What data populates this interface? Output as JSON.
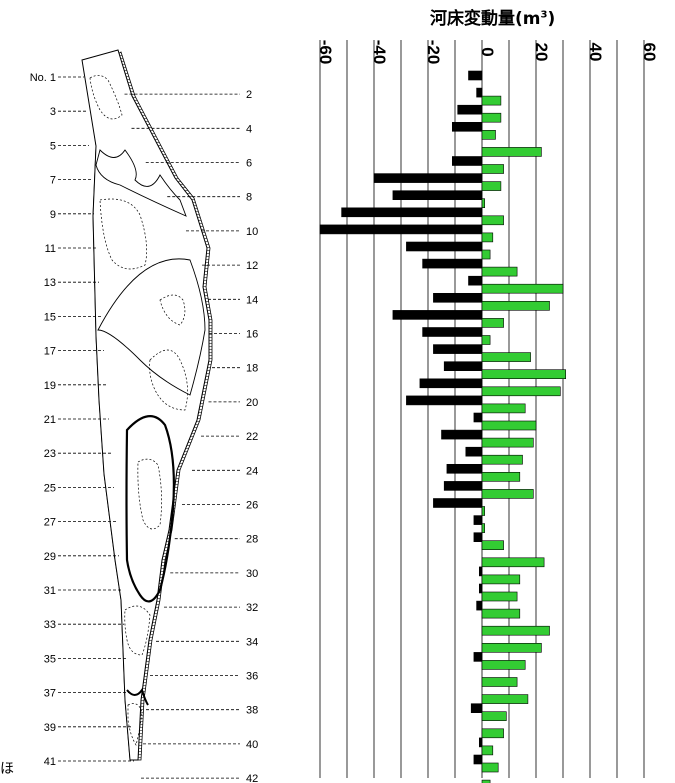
{
  "page": {
    "edge_char": "ほ"
  },
  "chart_data": {
    "type": "bar",
    "title": "河床変動量(m",
    "title_unit_superscript": "3",
    "title_close": ")",
    "x_axis": {
      "ticks": [
        -60,
        -40,
        -20,
        0,
        20,
        40,
        60
      ],
      "tick_labels": [
        "-60",
        "-40",
        "-20",
        "0",
        "20",
        "40",
        "60"
      ],
      "range": [
        -60,
        70
      ],
      "orientation": "vertical-rotated-labels",
      "grid": true
    },
    "sections": [
      "No. 1",
      "2",
      "3",
      "4",
      "5",
      "6",
      "7",
      "8",
      "9",
      "10",
      "11",
      "12",
      "13",
      "14",
      "15",
      "16",
      "17",
      "18",
      "19",
      "20",
      "21",
      "22",
      "23",
      "24",
      "25",
      "26",
      "27",
      "28",
      "29",
      "30",
      "31",
      "32",
      "33",
      "34",
      "35",
      "36",
      "37",
      "38",
      "39",
      "40",
      "41",
      "42"
    ],
    "series": [
      {
        "color": "#000000",
        "values": [
          -5,
          -2,
          -9,
          -11,
          0,
          -11,
          -40,
          -33,
          -52,
          -60,
          -28,
          -22,
          -5,
          -18,
          -33,
          -22,
          -18,
          -14,
          -23,
          -28,
          -3,
          -15,
          -6,
          -13,
          -14,
          -18,
          -3,
          -3,
          0,
          -1,
          -1,
          -2,
          0,
          0,
          -3,
          0,
          0,
          -4,
          0,
          -1,
          -3,
          0
        ]
      },
      {
        "color": "#33cc33",
        "values": [
          0,
          7,
          7,
          5,
          22,
          8,
          7,
          1,
          8,
          4,
          3,
          13,
          30,
          25,
          8,
          3,
          18,
          31,
          29,
          16,
          20,
          19,
          15,
          14,
          19,
          1,
          1,
          8,
          23,
          14,
          13,
          14,
          25,
          22,
          16,
          13,
          17,
          9,
          8,
          4,
          6,
          3
        ]
      }
    ]
  }
}
